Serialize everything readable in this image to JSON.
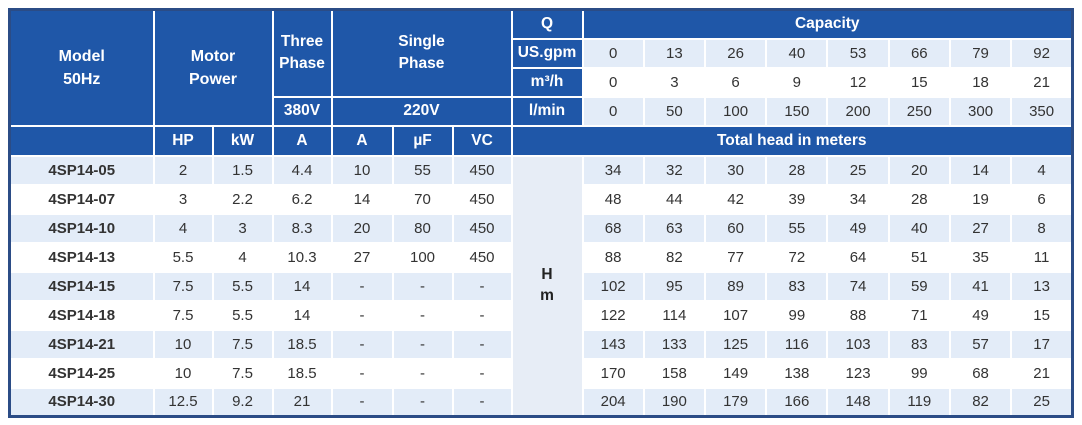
{
  "colors": {
    "header_blue": "#1f57a8",
    "border_navy": "#2b4c86",
    "row_alt": "#e3ecf8",
    "head_col_bg": "#e7edf6",
    "text": "#333333",
    "header_text": "#ffffff",
    "separator": "#ffffff"
  },
  "table": {
    "header": {
      "model": "Model\n50Hz",
      "motor_power": "Motor\nPower",
      "three_phase": "Three\nPhase",
      "single_phase": "Single\nPhase",
      "three_phase_voltage": "380V",
      "single_phase_voltage": "220V",
      "q": "Q",
      "capacity": "Capacity",
      "sub_headers": [
        "HP",
        "kW",
        "A",
        "A",
        "µF",
        "VC"
      ],
      "total_head": "Total head in meters",
      "head_unit": "H\nm"
    },
    "capacity_rows": [
      {
        "unit": "US.gpm",
        "values": [
          "0",
          "13",
          "26",
          "40",
          "53",
          "66",
          "79",
          "92"
        ]
      },
      {
        "unit": "m³/h",
        "values": [
          "0",
          "3",
          "6",
          "9",
          "12",
          "15",
          "18",
          "21"
        ]
      },
      {
        "unit": "l/min",
        "values": [
          "0",
          "50",
          "100",
          "150",
          "200",
          "250",
          "300",
          "350"
        ]
      }
    ],
    "rows": [
      {
        "model": "4SP14-05",
        "hp": "2",
        "kw": "1.5",
        "a_380": "4.4",
        "a_220": "10",
        "uf": "55",
        "vc": "450",
        "head": [
          "34",
          "32",
          "30",
          "28",
          "25",
          "20",
          "14",
          "4"
        ]
      },
      {
        "model": "4SP14-07",
        "hp": "3",
        "kw": "2.2",
        "a_380": "6.2",
        "a_220": "14",
        "uf": "70",
        "vc": "450",
        "head": [
          "48",
          "44",
          "42",
          "39",
          "34",
          "28",
          "19",
          "6"
        ]
      },
      {
        "model": "4SP14-10",
        "hp": "4",
        "kw": "3",
        "a_380": "8.3",
        "a_220": "20",
        "uf": "80",
        "vc": "450",
        "head": [
          "68",
          "63",
          "60",
          "55",
          "49",
          "40",
          "27",
          "8"
        ]
      },
      {
        "model": "4SP14-13",
        "hp": "5.5",
        "kw": "4",
        "a_380": "10.3",
        "a_220": "27",
        "uf": "100",
        "vc": "450",
        "head": [
          "88",
          "82",
          "77",
          "72",
          "64",
          "51",
          "35",
          "11"
        ]
      },
      {
        "model": "4SP14-15",
        "hp": "7.5",
        "kw": "5.5",
        "a_380": "14",
        "a_220": "-",
        "uf": "-",
        "vc": "-",
        "head": [
          "102",
          "95",
          "89",
          "83",
          "74",
          "59",
          "41",
          "13"
        ]
      },
      {
        "model": "4SP14-18",
        "hp": "7.5",
        "kw": "5.5",
        "a_380": "14",
        "a_220": "-",
        "uf": "-",
        "vc": "-",
        "head": [
          "122",
          "114",
          "107",
          "99",
          "88",
          "71",
          "49",
          "15"
        ]
      },
      {
        "model": "4SP14-21",
        "hp": "10",
        "kw": "7.5",
        "a_380": "18.5",
        "a_220": "-",
        "uf": "-",
        "vc": "-",
        "head": [
          "143",
          "133",
          "125",
          "116",
          "103",
          "83",
          "57",
          "17"
        ]
      },
      {
        "model": "4SP14-25",
        "hp": "10",
        "kw": "7.5",
        "a_380": "18.5",
        "a_220": "-",
        "uf": "-",
        "vc": "-",
        "head": [
          "170",
          "158",
          "149",
          "138",
          "123",
          "99",
          "68",
          "21"
        ]
      },
      {
        "model": "4SP14-30",
        "hp": "12.5",
        "kw": "9.2",
        "a_380": "21",
        "a_220": "-",
        "uf": "-",
        "vc": "-",
        "head": [
          "204",
          "190",
          "179",
          "166",
          "148",
          "119",
          "82",
          "25"
        ]
      }
    ]
  }
}
